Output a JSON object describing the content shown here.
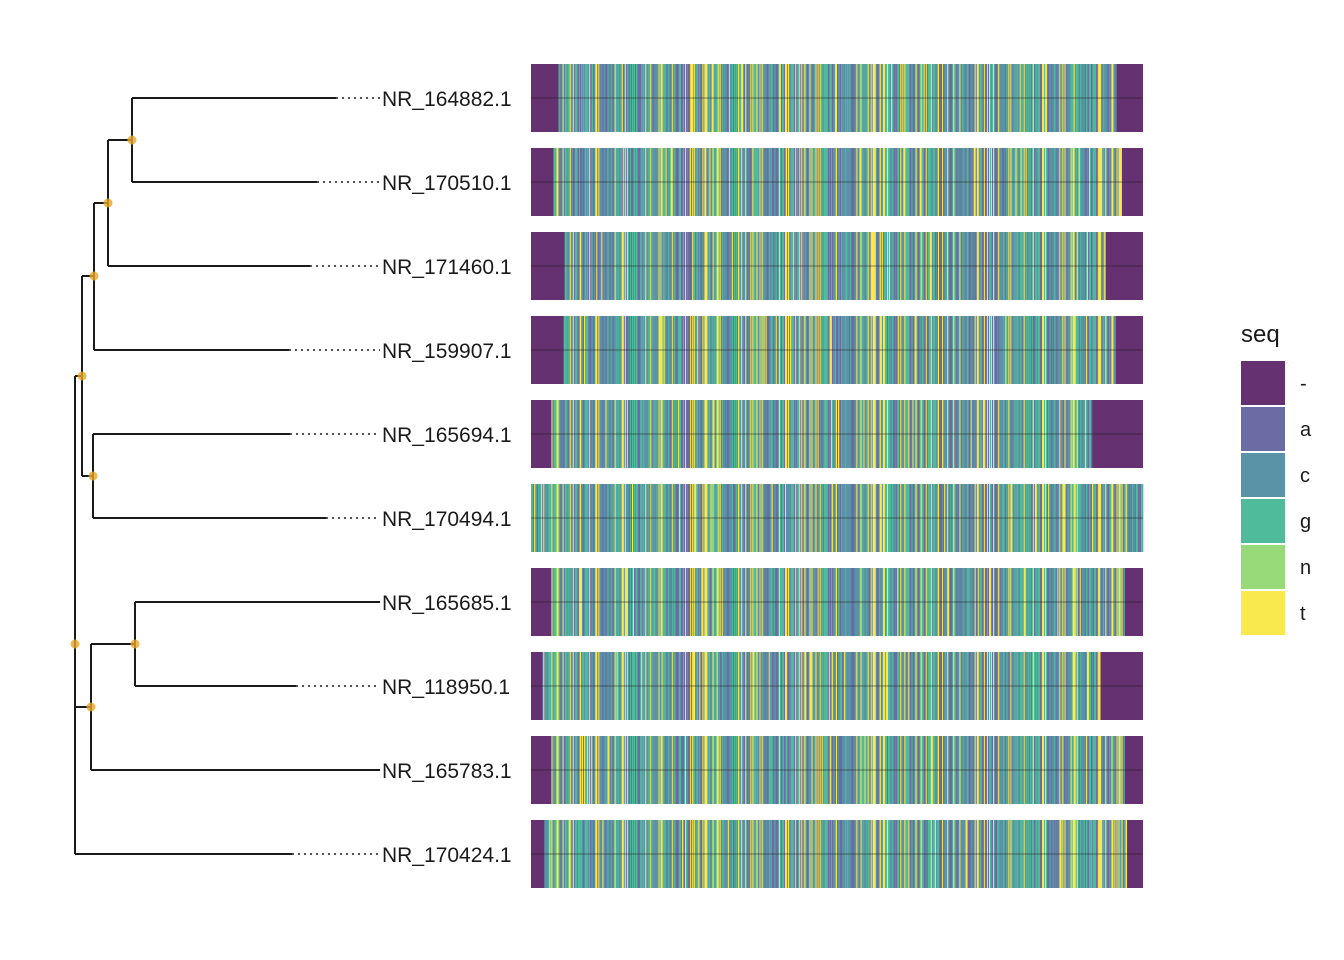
{
  "figure": {
    "tips": [
      "NR_164882.1",
      "NR_170510.1",
      "NR_171460.1",
      "NR_159907.1",
      "NR_165694.1",
      "NR_170494.1",
      "NR_165685.1",
      "NR_118950.1",
      "NR_165783.1",
      "NR_170424.1"
    ],
    "alignment": [
      {
        "label": "NR_164882.1",
        "gap_start": 0.045,
        "gap_end": 0.043
      },
      {
        "label": "NR_170510.1",
        "gap_start": 0.036,
        "gap_end": 0.035
      },
      {
        "label": "NR_171460.1",
        "gap_start": 0.055,
        "gap_end": 0.061
      },
      {
        "label": "NR_159907.1",
        "gap_start": 0.053,
        "gap_end": 0.045
      },
      {
        "label": "NR_165694.1",
        "gap_start": 0.034,
        "gap_end": 0.084
      },
      {
        "label": "NR_170494.1",
        "gap_start": 0.0,
        "gap_end": 0.0
      },
      {
        "label": "NR_165685.1",
        "gap_start": 0.034,
        "gap_end": 0.03
      },
      {
        "label": "NR_118950.1",
        "gap_start": 0.019,
        "gap_end": 0.07
      },
      {
        "label": "NR_165783.1",
        "gap_start": 0.034,
        "gap_end": 0.03
      },
      {
        "label": "NR_170424.1",
        "gap_start": 0.022,
        "gap_end": 0.026
      }
    ],
    "legend": {
      "title": "seq",
      "items": [
        {
          "label": "-",
          "color": "#663171"
        },
        {
          "label": "a",
          "color": "#6b6ca3"
        },
        {
          "label": "c",
          "color": "#5a93a8"
        },
        {
          "label": "g",
          "color": "#4fbb9b"
        },
        {
          "label": "n",
          "color": "#98d979"
        },
        {
          "label": "t",
          "color": "#fae84f"
        }
      ]
    },
    "node_color": "#e8a628"
  }
}
